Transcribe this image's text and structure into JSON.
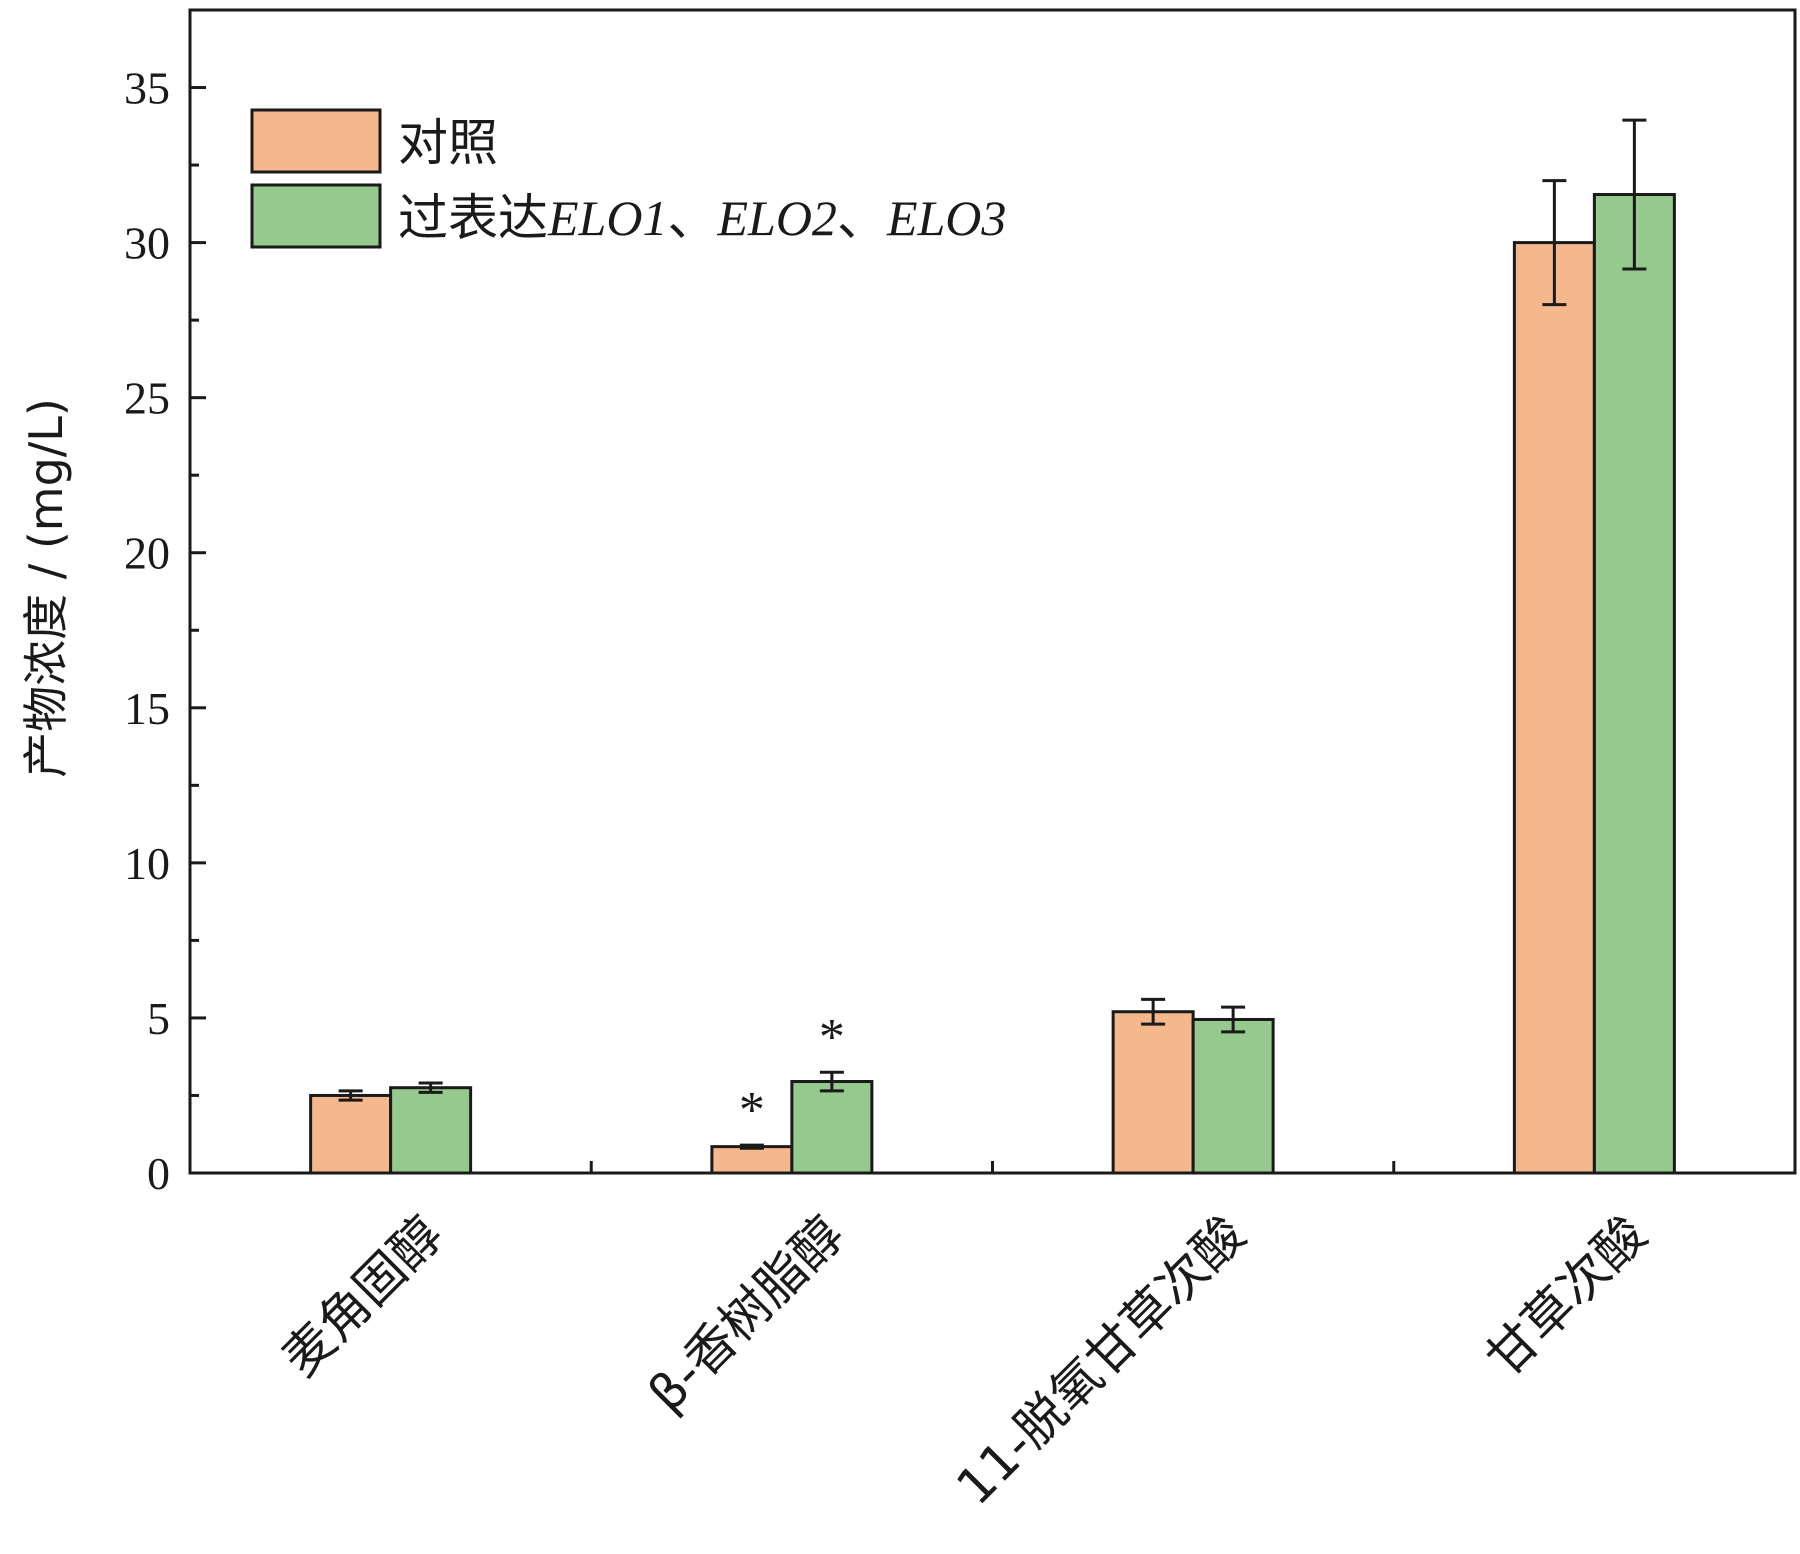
{
  "chart_data": {
    "type": "bar",
    "ylabel": "产物浓度 / (mg/L)",
    "ylim": [
      0,
      37.5
    ],
    "yticks": [
      0,
      5,
      10,
      15,
      20,
      25,
      30,
      35
    ],
    "categories": [
      "麦角固醇",
      "β-香树脂醇",
      "11-脱氧甘草次酸",
      "甘草次酸"
    ],
    "series": [
      {
        "name": "对照",
        "color": "#f5b88d",
        "values": [
          2.5,
          0.85,
          5.2,
          30.0
        ],
        "errors": [
          0.15,
          0.05,
          0.4,
          2.0
        ],
        "significance": [
          "",
          "*",
          "",
          ""
        ]
      },
      {
        "name": "过表达ELO1、ELO2、ELO3",
        "color": "#96c98e",
        "values": [
          2.75,
          2.95,
          4.95,
          31.55
        ],
        "errors": [
          0.15,
          0.3,
          0.4,
          2.4
        ],
        "significance": [
          "",
          "*",
          "",
          ""
        ]
      }
    ],
    "legend": {
      "position": "top-left",
      "entries": [
        {
          "text": "对照"
        },
        {
          "prefix": "过表达",
          "parts": [
            "ELO1",
            "、",
            "ELO2",
            "、",
            "ELO3"
          ]
        }
      ]
    },
    "grid": false
  }
}
